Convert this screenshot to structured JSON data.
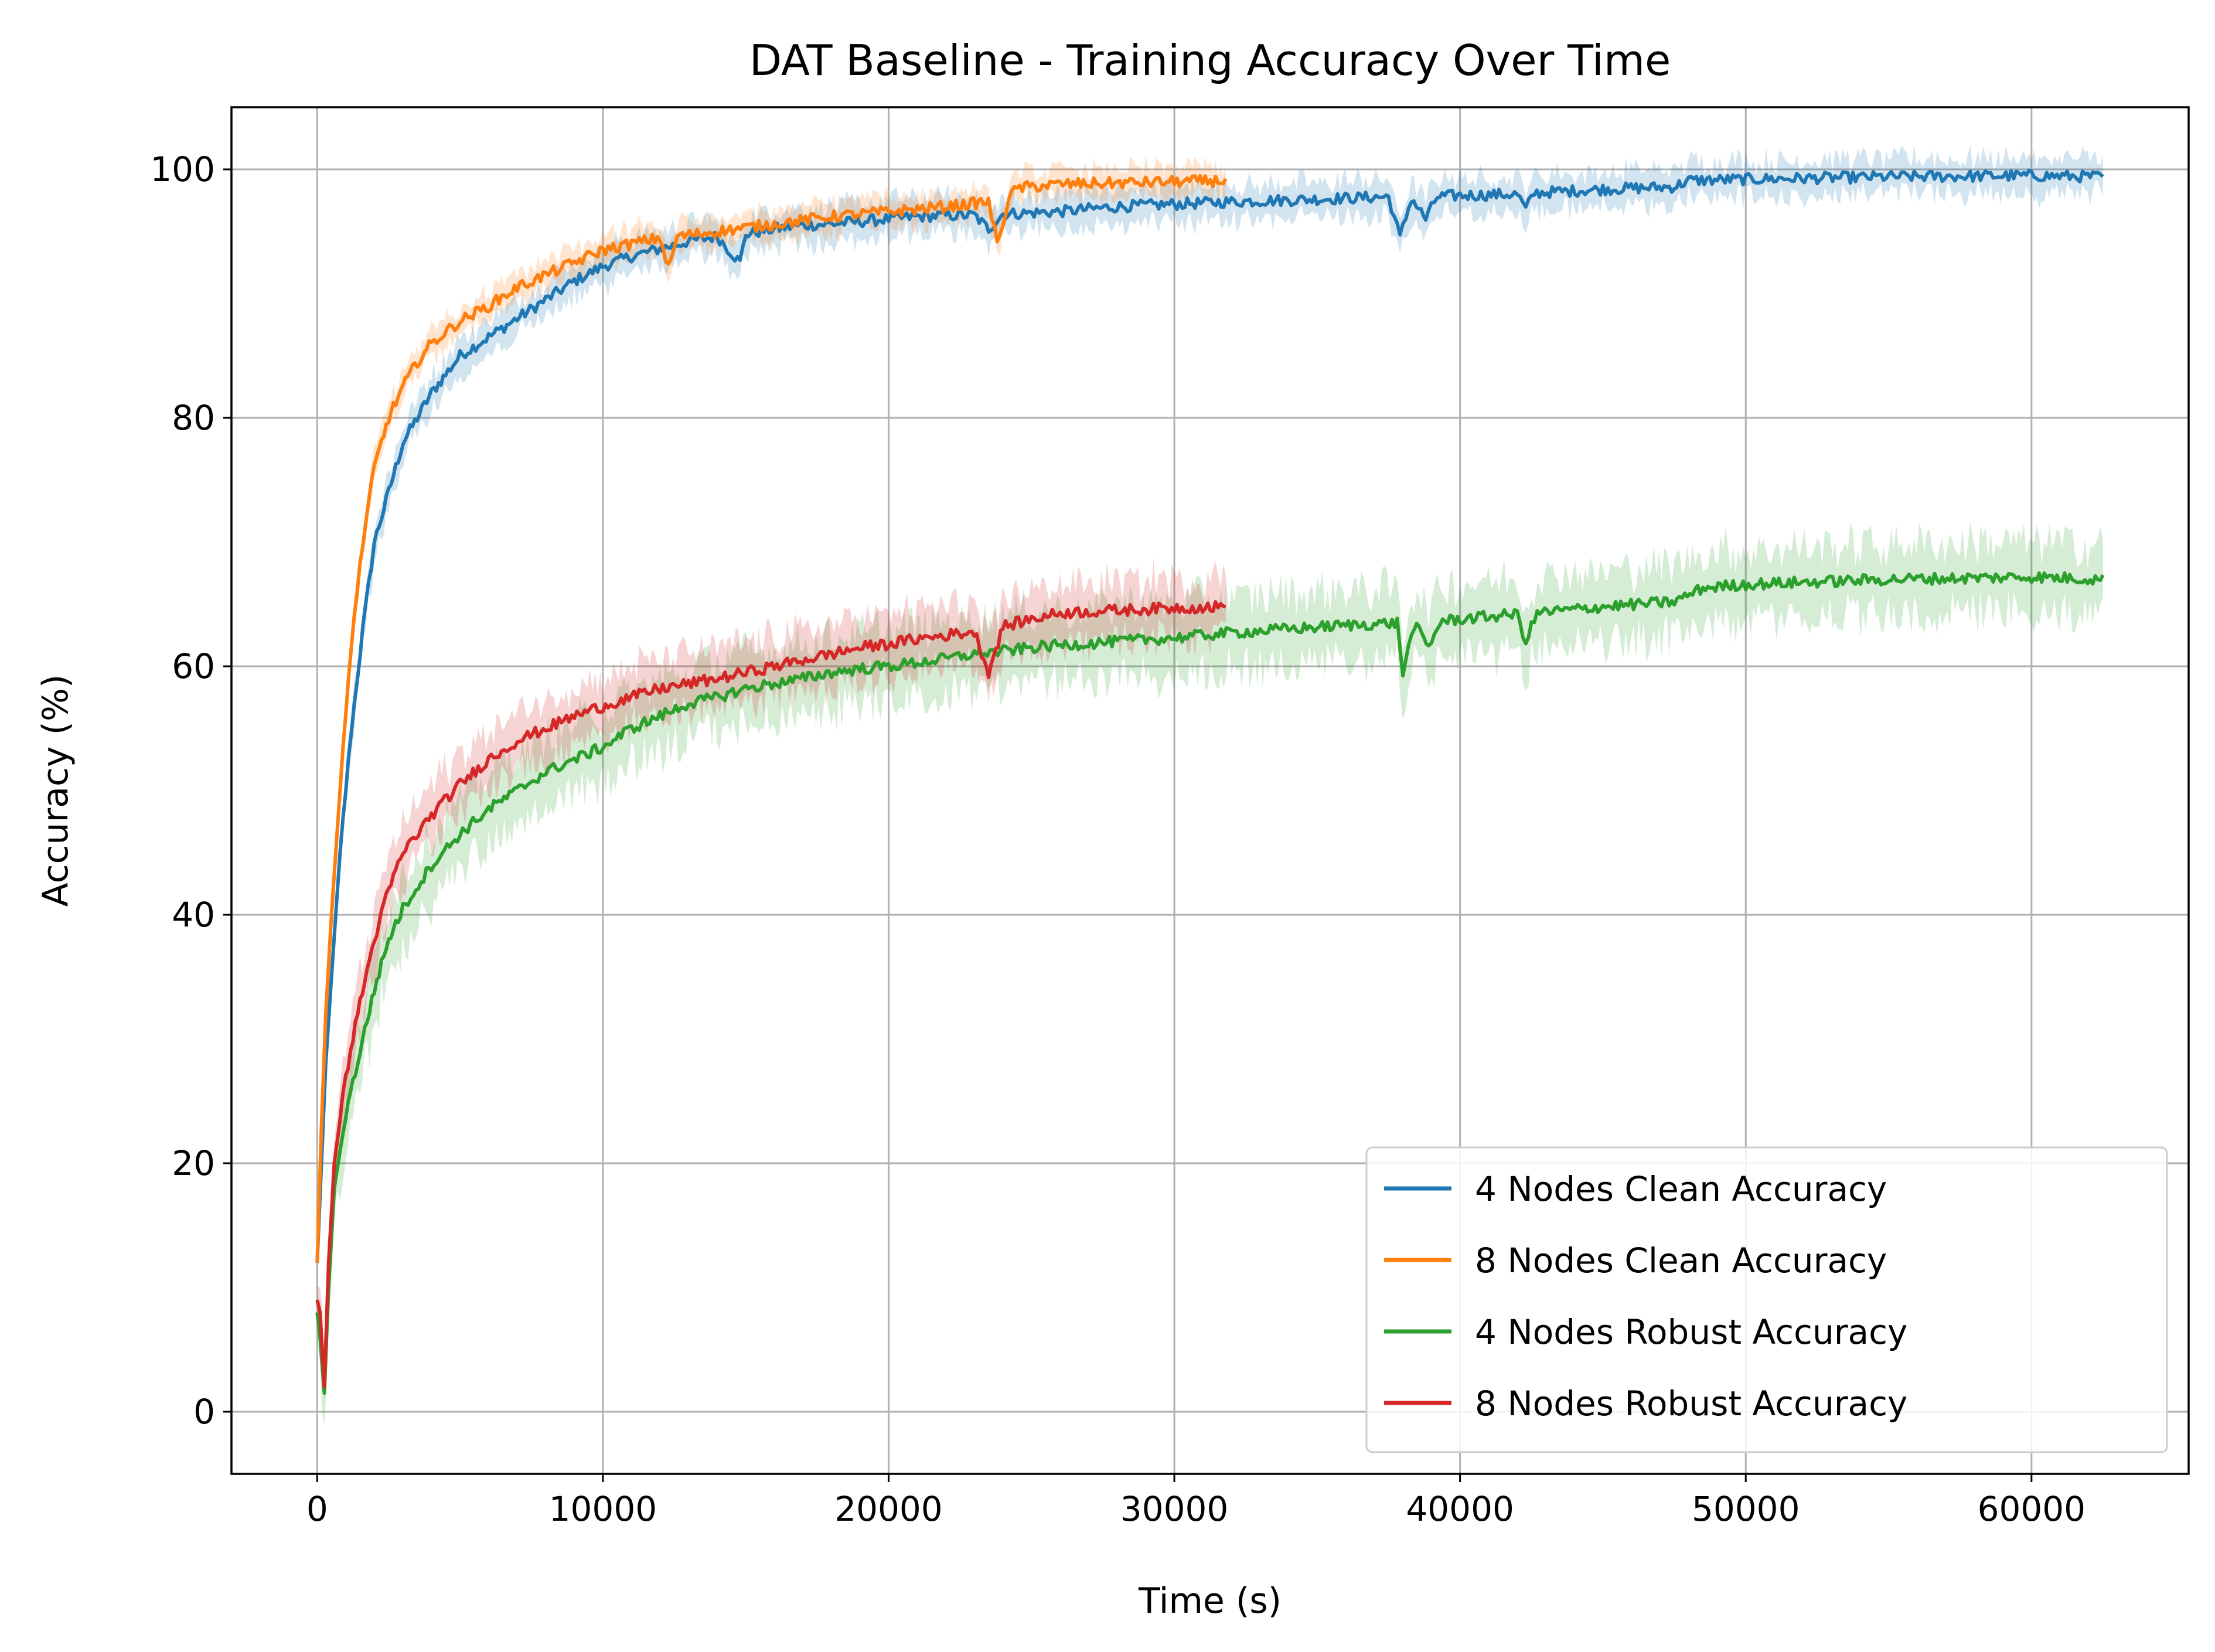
{
  "chart_data": {
    "type": "line",
    "title": "DAT Baseline - Training Accuracy Over Time",
    "xlabel": "Time (s)",
    "ylabel": "Accuracy (%)",
    "xlim": [
      -3000,
      65500
    ],
    "ylim": [
      -5,
      105
    ],
    "xticks": [
      0,
      10000,
      20000,
      30000,
      40000,
      50000,
      60000
    ],
    "xtick_labels": [
      "0",
      "10000",
      "20000",
      "30000",
      "40000",
      "50000",
      "60000"
    ],
    "yticks": [
      0,
      20,
      40,
      60,
      80,
      100
    ],
    "ytick_labels": [
      "0",
      "20",
      "40",
      "60",
      "80",
      "100"
    ],
    "grid": true,
    "legend": "bottom-right",
    "series": [
      {
        "name": "4 Nodes Clean Accuracy",
        "color": "#1f77b4",
        "band_halfwidth": 1.5,
        "points": [
          [
            0,
            12
          ],
          [
            150,
            20
          ],
          [
            300,
            28
          ],
          [
            500,
            35
          ],
          [
            800,
            45
          ],
          [
            1200,
            55
          ],
          [
            1600,
            63
          ],
          [
            2000,
            70
          ],
          [
            2500,
            74
          ],
          [
            3000,
            78
          ],
          [
            3500,
            80
          ],
          [
            4000,
            82
          ],
          [
            4500,
            83.5
          ],
          [
            5000,
            85
          ],
          [
            6000,
            86.5
          ],
          [
            7000,
            88
          ],
          [
            8000,
            89.5
          ],
          [
            9000,
            91
          ],
          [
            10000,
            92.2
          ],
          [
            11000,
            93
          ],
          [
            12000,
            93.6
          ],
          [
            13000,
            94.2
          ],
          [
            14000,
            94.6
          ],
          [
            14800,
            92.5
          ],
          [
            15000,
            94.8
          ],
          [
            16000,
            95.2
          ],
          [
            17000,
            95.5
          ],
          [
            18000,
            95.6
          ],
          [
            19000,
            95.8
          ],
          [
            20000,
            96
          ],
          [
            21000,
            96.2
          ],
          [
            22000,
            96.3
          ],
          [
            23000,
            96.3
          ],
          [
            23500,
            95.2
          ],
          [
            24000,
            96.4
          ],
          [
            25000,
            96.5
          ],
          [
            26000,
            96.6
          ],
          [
            28000,
            97
          ],
          [
            30000,
            97.2
          ],
          [
            32000,
            97.4
          ],
          [
            35000,
            97.6
          ],
          [
            37500,
            97.8
          ],
          [
            37900,
            94.5
          ],
          [
            38300,
            97.7
          ],
          [
            38800,
            96
          ],
          [
            39200,
            97.8
          ],
          [
            40000,
            97.9
          ],
          [
            42000,
            98
          ],
          [
            42300,
            96.8
          ],
          [
            42600,
            98.1
          ],
          [
            45000,
            98.4
          ],
          [
            47500,
            98.6
          ],
          [
            48000,
            99.1
          ],
          [
            50000,
            99.2
          ],
          [
            55000,
            99.4
          ],
          [
            60000,
            99.5
          ],
          [
            62500,
            99.4
          ]
        ]
      },
      {
        "name": "8 Nodes Clean Accuracy",
        "color": "#ff7f0e",
        "band_halfwidth": 1.2,
        "points": [
          [
            0,
            12
          ],
          [
            150,
            23
          ],
          [
            300,
            32
          ],
          [
            500,
            40
          ],
          [
            800,
            50
          ],
          [
            1200,
            62
          ],
          [
            1600,
            70
          ],
          [
            2000,
            76
          ],
          [
            2500,
            80
          ],
          [
            3000,
            82.5
          ],
          [
            3500,
            84.5
          ],
          [
            4000,
            86
          ],
          [
            5000,
            87.8
          ],
          [
            6000,
            89
          ],
          [
            7000,
            90.5
          ],
          [
            8000,
            91.5
          ],
          [
            9000,
            92.5
          ],
          [
            10000,
            93.5
          ],
          [
            11000,
            94
          ],
          [
            12000,
            94.5
          ],
          [
            12300,
            92
          ],
          [
            12600,
            94.6
          ],
          [
            14000,
            95
          ],
          [
            16000,
            95.6
          ],
          [
            18000,
            96.2
          ],
          [
            20000,
            96.6
          ],
          [
            22000,
            97
          ],
          [
            23500,
            97.4
          ],
          [
            23800,
            94
          ],
          [
            24200,
            97.6
          ],
          [
            24500,
            98.5
          ],
          [
            26000,
            98.8
          ],
          [
            28000,
            98.9
          ],
          [
            30000,
            99
          ],
          [
            31800,
            99.1
          ]
        ]
      },
      {
        "name": "4 Nodes Robust Accuracy",
        "color": "#2ca02c",
        "band_halfwidth": 3,
        "points": [
          [
            0,
            8
          ],
          [
            100,
            6
          ],
          [
            250,
            1.5
          ],
          [
            400,
            10
          ],
          [
            600,
            18
          ],
          [
            1000,
            24
          ],
          [
            1500,
            29
          ],
          [
            2000,
            34
          ],
          [
            2500,
            38
          ],
          [
            3000,
            40.5
          ],
          [
            4000,
            44
          ],
          [
            5000,
            46.5
          ],
          [
            6000,
            48.5
          ],
          [
            7000,
            50
          ],
          [
            8000,
            51.5
          ],
          [
            9000,
            52.5
          ],
          [
            10000,
            53.5
          ],
          [
            11000,
            55
          ],
          [
            12000,
            56
          ],
          [
            13000,
            57
          ],
          [
            14000,
            57.5
          ],
          [
            15000,
            58.2
          ],
          [
            16000,
            58.6
          ],
          [
            17000,
            59
          ],
          [
            18000,
            59.5
          ],
          [
            19000,
            59.8
          ],
          [
            20000,
            60
          ],
          [
            21000,
            60.3
          ],
          [
            22000,
            60.6
          ],
          [
            23000,
            61
          ],
          [
            24000,
            61.2
          ],
          [
            25000,
            61.5
          ],
          [
            26000,
            61.7
          ],
          [
            28000,
            62
          ],
          [
            30000,
            62.3
          ],
          [
            32000,
            62.7
          ],
          [
            34000,
            63
          ],
          [
            36000,
            63.3
          ],
          [
            37800,
            63.5
          ],
          [
            38000,
            59.5
          ],
          [
            38400,
            63.4
          ],
          [
            38900,
            61.5
          ],
          [
            39300,
            63.6
          ],
          [
            40000,
            63.8
          ],
          [
            42000,
            64.2
          ],
          [
            42300,
            62
          ],
          [
            42700,
            64.3
          ],
          [
            45000,
            64.8
          ],
          [
            47500,
            65.2
          ],
          [
            48500,
            66.3
          ],
          [
            50000,
            66.6
          ],
          [
            55000,
            67
          ],
          [
            60000,
            67.2
          ],
          [
            62500,
            67
          ]
        ]
      },
      {
        "name": "8 Nodes Robust Accuracy",
        "color": "#d62728",
        "band_halfwidth": 2.5,
        "points": [
          [
            0,
            9
          ],
          [
            100,
            8
          ],
          [
            250,
            2
          ],
          [
            400,
            12
          ],
          [
            600,
            20
          ],
          [
            1000,
            27
          ],
          [
            1500,
            33
          ],
          [
            2000,
            38
          ],
          [
            2500,
            42
          ],
          [
            3000,
            45
          ],
          [
            4000,
            48
          ],
          [
            5000,
            50.5
          ],
          [
            6000,
            52.5
          ],
          [
            7000,
            54
          ],
          [
            8000,
            55
          ],
          [
            9000,
            56
          ],
          [
            10000,
            56.8
          ],
          [
            11000,
            57.5
          ],
          [
            12000,
            58.2
          ],
          [
            13000,
            58.6
          ],
          [
            14000,
            59
          ],
          [
            15000,
            59.5
          ],
          [
            16000,
            60
          ],
          [
            17000,
            60.5
          ],
          [
            18000,
            61
          ],
          [
            19000,
            61.5
          ],
          [
            20000,
            61.8
          ],
          [
            21000,
            62.2
          ],
          [
            22000,
            62.5
          ],
          [
            23000,
            62.8
          ],
          [
            23500,
            59.5
          ],
          [
            24000,
            63.2
          ],
          [
            25000,
            63.8
          ],
          [
            26000,
            64.3
          ],
          [
            28000,
            64.5
          ],
          [
            30000,
            64.7
          ],
          [
            31800,
            64.8
          ]
        ]
      }
    ]
  }
}
